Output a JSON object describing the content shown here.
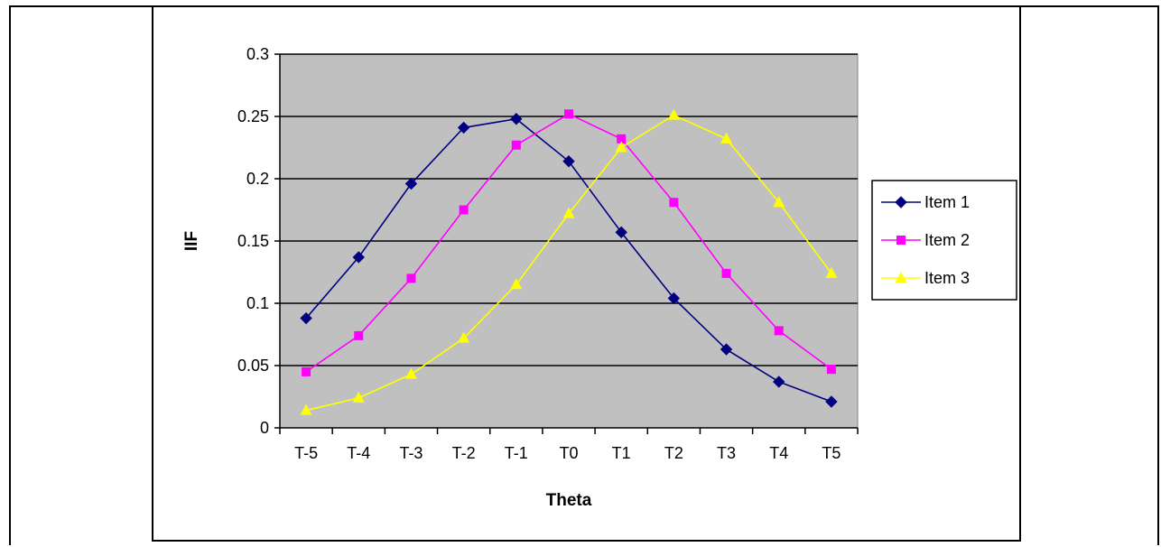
{
  "chart_data": {
    "type": "line",
    "xlabel": "Theta",
    "ylabel": "IIF",
    "categories": [
      "T-5",
      "T-4",
      "T-3",
      "T-2",
      "T-1",
      "T0",
      "T1",
      "T2",
      "T3",
      "T4",
      "T5"
    ],
    "ylim": [
      0,
      0.3
    ],
    "yticks": [
      "0",
      "0.05",
      "0.1",
      "0.15",
      "0.2",
      "0.25",
      "0.3"
    ],
    "grid": true,
    "legend": "right",
    "plot_background": "#c0c0c0",
    "series": [
      {
        "name": "Item 1",
        "color": "#000080",
        "marker": "diamond",
        "values": [
          0.088,
          0.137,
          0.196,
          0.241,
          0.248,
          0.214,
          0.157,
          0.104,
          0.063,
          0.037,
          0.021
        ]
      },
      {
        "name": "Item 2",
        "color": "#ff00ff",
        "marker": "square",
        "values": [
          0.045,
          0.074,
          0.12,
          0.175,
          0.227,
          0.252,
          0.232,
          0.181,
          0.124,
          0.078,
          0.047
        ]
      },
      {
        "name": "Item 3",
        "color": "#ffff00",
        "marker": "triangle",
        "values": [
          0.014,
          0.024,
          0.043,
          0.072,
          0.115,
          0.172,
          0.225,
          0.251,
          0.232,
          0.181,
          0.124
        ]
      }
    ]
  }
}
